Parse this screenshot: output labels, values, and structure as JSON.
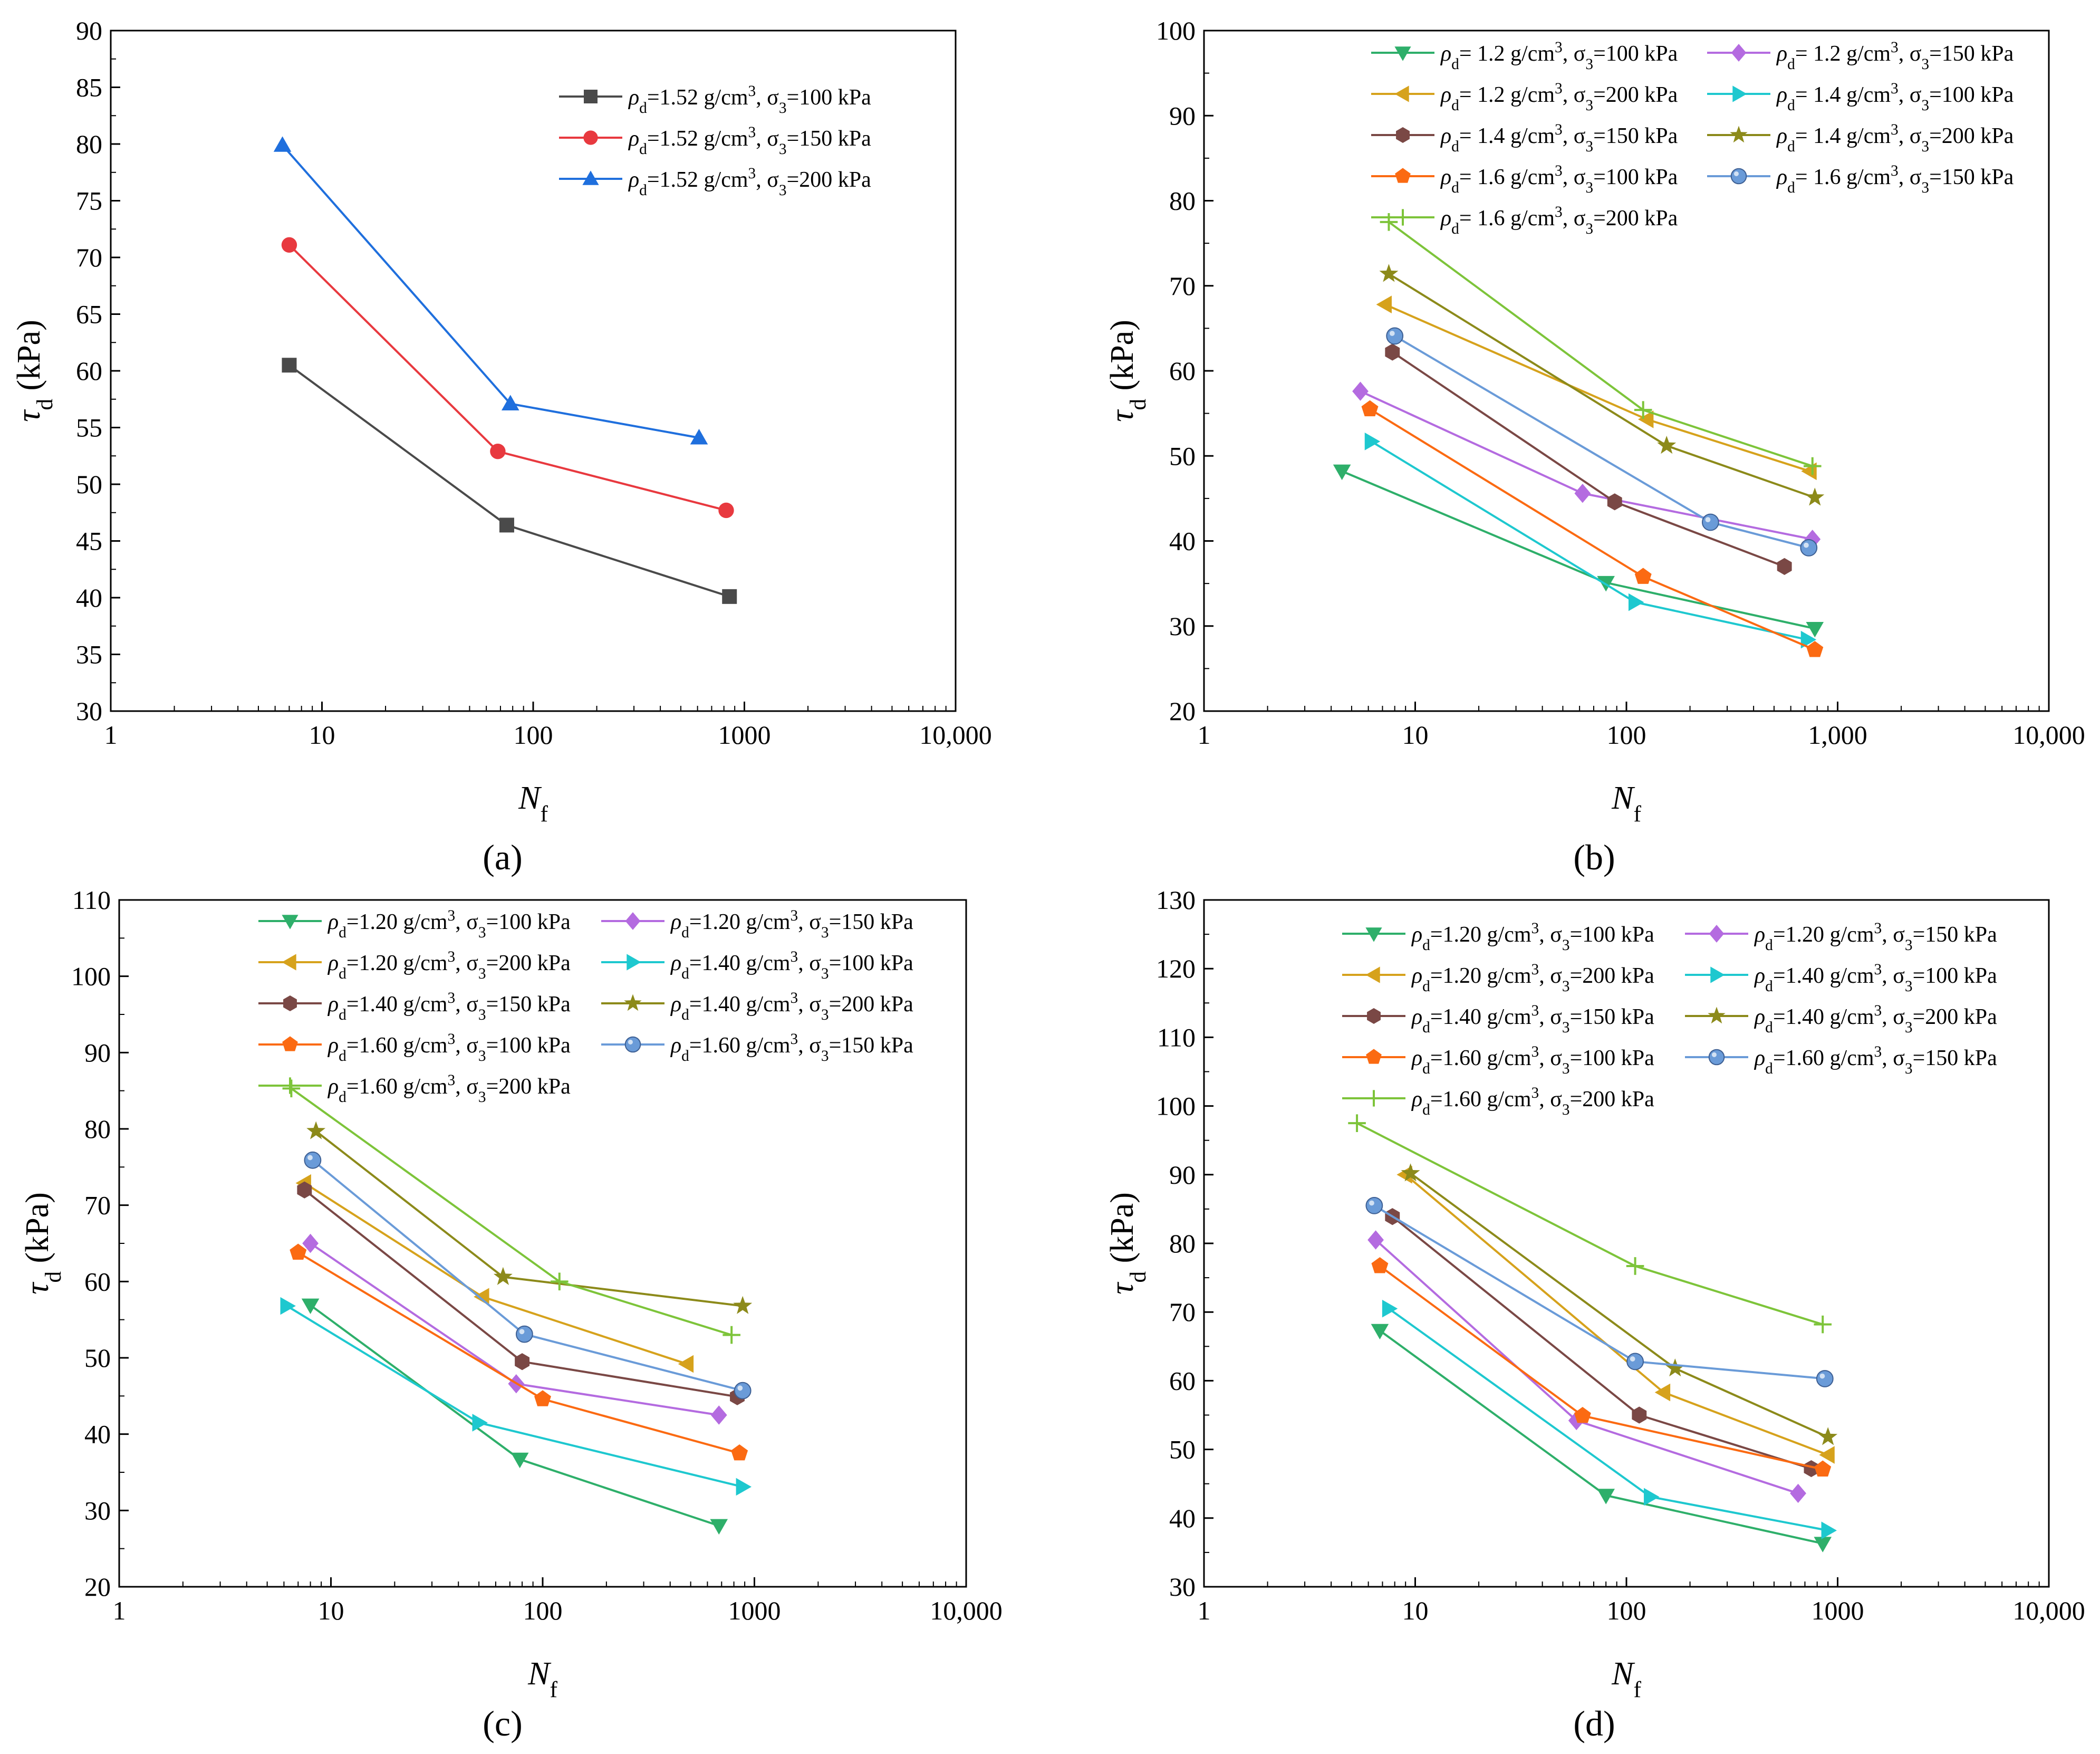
{
  "colors": {
    "black": "#4a4a4a",
    "red": "#e8393f",
    "blue": "#1f6fdd",
    "green": "#2eaf6a",
    "purple": "#b46be0",
    "gold": "#d6a21c",
    "cyan": "#1ec8cf",
    "brown": "#7a4845",
    "olive": "#8c8a1a",
    "orange": "#fb6a12",
    "steel": "#6a9bd8",
    "lime": "#7dc43a"
  },
  "chart_data": [
    {
      "id": "a",
      "panel_label": "(a)",
      "type": "line",
      "xscale": "log",
      "xlim": [
        1,
        10000
      ],
      "xticks": [
        1,
        10,
        100,
        1000,
        10000
      ],
      "xticklabels": [
        "1",
        "10",
        "100",
        "1000",
        "10,000"
      ],
      "ylim": [
        30,
        90
      ],
      "yticks": [
        30,
        35,
        40,
        45,
        50,
        55,
        60,
        65,
        70,
        75,
        80,
        85,
        90
      ],
      "xlabel": "N",
      "xlabel_sub": "f",
      "ylabel": "τ",
      "ylabel_sub": "d",
      "ylabel_unit": " (kPa)",
      "legend_position": "top-right",
      "legend_columns": 1,
      "series": [
        {
          "name": "ρd=1.52 g/cm3, σ3=100 kPa",
          "label_parts": [
            "ρ",
            "d",
            "=1.52 g/cm",
            "3",
            ", σ",
            "3",
            "=100 kPa"
          ],
          "marker": "square",
          "color": "#4a4a4a",
          "x": [
            7,
            75,
            850
          ],
          "y": [
            60.5,
            46.4,
            40.1
          ]
        },
        {
          "name": "ρd=1.52 g/cm3, σ3=150 kPa",
          "label_parts": [
            "ρ",
            "d",
            "=1.52 g/cm",
            "3",
            ", σ",
            "3",
            "=150 kPa"
          ],
          "marker": "circle",
          "color": "#e8393f",
          "x": [
            7,
            68,
            820
          ],
          "y": [
            71.1,
            52.9,
            47.7
          ]
        },
        {
          "name": "ρd=1.52 g/cm3, σ3=200 kPa",
          "label_parts": [
            "ρ",
            "d",
            "=1.52 g/cm",
            "3",
            ", σ",
            "3",
            "=200 kPa"
          ],
          "marker": "triangle-up",
          "color": "#1f6fdd",
          "x": [
            6.5,
            78,
            610
          ],
          "y": [
            79.9,
            57.1,
            54.1
          ]
        }
      ]
    },
    {
      "id": "b",
      "panel_label": "(b)",
      "type": "line",
      "xscale": "log",
      "xlim": [
        1,
        10000
      ],
      "xticks": [
        1,
        10,
        100,
        1000,
        10000
      ],
      "xticklabels": [
        "1",
        "10",
        "100",
        "1,000",
        "10,000"
      ],
      "ylim": [
        20,
        100
      ],
      "yticks": [
        20,
        30,
        40,
        50,
        60,
        70,
        80,
        90,
        100
      ],
      "xlabel": "N",
      "xlabel_sub": "f",
      "ylabel": "τ",
      "ylabel_sub": "d",
      "ylabel_unit": " (kPa)",
      "legend_position": "top",
      "legend_columns": 2,
      "series": [
        {
          "name": "ρd= 1.2 g/cm3, σ3=100 kPa",
          "label_parts": [
            "ρ",
            "d",
            "= 1.2 g/cm",
            "3",
            ", σ",
            "3",
            "=100 kPa"
          ],
          "marker": "triangle-down",
          "color": "#2eaf6a",
          "x": [
            4.5,
            80,
            780
          ],
          "y": [
            48.2,
            35.1,
            29.7
          ]
        },
        {
          "name": "ρd= 1.2 g/cm3, σ3=150 kPa",
          "label_parts": [
            "ρ",
            "d",
            "= 1.2 g/cm",
            "3",
            ", σ",
            "3",
            "=150 kPa"
          ],
          "marker": "diamond",
          "color": "#b46be0",
          "x": [
            5.5,
            62,
            760
          ],
          "y": [
            57.6,
            45.6,
            40.2
          ]
        },
        {
          "name": "ρd= 1.2 g/cm3, σ3=200 kPa",
          "label_parts": [
            "ρ",
            "d",
            "= 1.2 g/cm",
            "3",
            ", σ",
            "3",
            "=200 kPa"
          ],
          "marker": "triangle-left",
          "color": "#d6a21c",
          "x": [
            7.2,
            125,
            740
          ],
          "y": [
            67.8,
            54.3,
            48.2
          ]
        },
        {
          "name": "ρd= 1.4 g/cm3, σ3=100 kPa",
          "label_parts": [
            "ρ",
            "d",
            "= 1.4 g/cm",
            "3",
            ", σ",
            "3",
            "=100 kPa"
          ],
          "marker": "triangle-right",
          "color": "#1ec8cf",
          "x": [
            6.2,
            110,
            720
          ],
          "y": [
            51.7,
            32.8,
            28.4
          ]
        },
        {
          "name": "ρd= 1.4 g/cm3, σ3=150 kPa",
          "label_parts": [
            "ρ",
            "d",
            "= 1.4 g/cm",
            "3",
            ", σ",
            "3",
            "=150 kPa"
          ],
          "marker": "hexagon",
          "color": "#7a4845",
          "x": [
            7.8,
            88,
            560
          ],
          "y": [
            62.2,
            44.6,
            37.0
          ]
        },
        {
          "name": "ρd= 1.4 g/cm3, σ3=200 kPa",
          "label_parts": [
            "ρ",
            "d",
            "= 1.4 g/cm",
            "3",
            ", σ",
            "3",
            "=200 kPa"
          ],
          "marker": "star",
          "color": "#8c8a1a",
          "x": [
            7.5,
            155,
            780
          ],
          "y": [
            71.4,
            51.2,
            45.1
          ]
        },
        {
          "name": "ρd= 1.6 g/cm3, σ3=100 kPa",
          "label_parts": [
            "ρ",
            "d",
            "= 1.6 g/cm",
            "3",
            ", σ",
            "3",
            "=100 kPa"
          ],
          "marker": "pentagon",
          "color": "#fb6a12",
          "x": [
            6.1,
            120,
            780
          ],
          "y": [
            55.5,
            35.8,
            27.2
          ]
        },
        {
          "name": "ρd= 1.6 g/cm3, σ3=150 kPa",
          "label_parts": [
            "ρ",
            "d",
            "= 1.6 g/cm",
            "3",
            ", σ",
            "3",
            "=150 kPa"
          ],
          "marker": "sphere",
          "color": "#6a9bd8",
          "x": [
            8,
            250,
            730
          ],
          "y": [
            64.1,
            42.2,
            39.2
          ]
        },
        {
          "name": "ρd= 1.6 g/cm3, σ3=200 kPa",
          "label_parts": [
            "ρ",
            "d",
            "= 1.6 g/cm",
            "3",
            ", σ",
            "3",
            "=200 kPa"
          ],
          "marker": "plus",
          "color": "#7dc43a",
          "x": [
            7.5,
            120,
            760
          ],
          "y": [
            77.5,
            55.4,
            48.8
          ]
        }
      ]
    },
    {
      "id": "c",
      "panel_label": "(c)",
      "type": "line",
      "xscale": "log",
      "xlim": [
        1,
        10000
      ],
      "xticks": [
        1,
        10,
        100,
        1000,
        10000
      ],
      "xticklabels": [
        "1",
        "10",
        "100",
        "1000",
        "10,000"
      ],
      "ylim": [
        20,
        110
      ],
      "yticks": [
        20,
        30,
        40,
        50,
        60,
        70,
        80,
        90,
        100,
        110
      ],
      "xlabel": "N",
      "xlabel_sub": "f",
      "ylabel": "τ",
      "ylabel_sub": "d",
      "ylabel_unit": " (kPa)",
      "legend_position": "top",
      "legend_columns": 2,
      "series": [
        {
          "name": "ρd=1.20 g/cm3, σ3=100 kPa",
          "label_parts": [
            "ρ",
            "d",
            "=1.20 g/cm",
            "3",
            ", σ",
            "3",
            "=100 kPa"
          ],
          "marker": "triangle-down",
          "color": "#2eaf6a",
          "x": [
            8,
            78,
            680
          ],
          "y": [
            56.9,
            36.7,
            28.0
          ]
        },
        {
          "name": "ρd=1.20 g/cm3, σ3=150 kPa",
          "label_parts": [
            "ρ",
            "d",
            "=1.20 g/cm",
            "3",
            ", σ",
            "3",
            "=150 kPa"
          ],
          "marker": "diamond",
          "color": "#b46be0",
          "x": [
            8,
            75,
            680
          ],
          "y": [
            65.0,
            46.6,
            42.5
          ]
        },
        {
          "name": "ρd=1.20 g/cm3, σ3=200 kPa",
          "label_parts": [
            "ρ",
            "d",
            "=1.20 g/cm",
            "3",
            ", σ",
            "3",
            "=200 kPa"
          ],
          "marker": "triangle-left",
          "color": "#d6a21c",
          "x": [
            7.5,
            52,
            480
          ],
          "y": [
            72.9,
            58.0,
            49.2
          ]
        },
        {
          "name": "ρd=1.40 g/cm3, σ3=100 kPa",
          "label_parts": [
            "ρ",
            "d",
            "=1.40 g/cm",
            "3",
            ", σ",
            "3",
            "=100 kPa"
          ],
          "marker": "triangle-right",
          "color": "#1ec8cf",
          "x": [
            6.2,
            50,
            880
          ],
          "y": [
            56.8,
            41.5,
            33.1
          ]
        },
        {
          "name": "ρd=1.40 g/cm3, σ3=150 kPa",
          "label_parts": [
            "ρ",
            "d",
            "=1.40 g/cm",
            "3",
            ", σ",
            "3",
            "=150 kPa"
          ],
          "marker": "hexagon",
          "color": "#7a4845",
          "x": [
            7.5,
            80,
            830
          ],
          "y": [
            72.0,
            49.5,
            44.9
          ]
        },
        {
          "name": "ρd=1.40 g/cm3, σ3=200 kPa",
          "label_parts": [
            "ρ",
            "d",
            "=1.40 g/cm",
            "3",
            ", σ",
            "3",
            "=200 kPa"
          ],
          "marker": "star",
          "color": "#8c8a1a",
          "x": [
            8.5,
            65,
            880
          ],
          "y": [
            79.7,
            60.6,
            56.8
          ]
        },
        {
          "name": "ρd=1.60 g/cm3, σ3=100 kPa",
          "label_parts": [
            "ρ",
            "d",
            "=1.60 g/cm",
            "3",
            ", σ",
            "3",
            "=100 kPa"
          ],
          "marker": "pentagon",
          "color": "#fb6a12",
          "x": [
            7,
            100,
            850
          ],
          "y": [
            63.8,
            44.6,
            37.5
          ]
        },
        {
          "name": "ρd=1.60 g/cm3, σ3=150 kPa",
          "label_parts": [
            "ρ",
            "d",
            "=1.60 g/cm",
            "3",
            ", σ",
            "3",
            "=150 kPa"
          ],
          "marker": "sphere",
          "color": "#6a9bd8",
          "x": [
            8.2,
            82,
            880
          ],
          "y": [
            75.9,
            53.1,
            45.7
          ]
        },
        {
          "name": "ρd=1.60 g/cm3, σ3=200 kPa",
          "label_parts": [
            "ρ",
            "d",
            "=1.60 g/cm",
            "3",
            ", σ",
            "3",
            "=200 kPa"
          ],
          "marker": "plus",
          "color": "#7dc43a",
          "x": [
            6.5,
            120,
            780
          ],
          "y": [
            85.3,
            60.0,
            53.0
          ]
        }
      ]
    },
    {
      "id": "d",
      "panel_label": "(d)",
      "type": "line",
      "xscale": "log",
      "xlim": [
        1,
        10000
      ],
      "xticks": [
        1,
        10,
        100,
        1000,
        10000
      ],
      "xticklabels": [
        "1",
        "10",
        "100",
        "1000",
        "10,000"
      ],
      "ylim": [
        30,
        130
      ],
      "yticks": [
        30,
        40,
        50,
        60,
        70,
        80,
        90,
        100,
        110,
        120,
        130
      ],
      "xlabel": "N",
      "xlabel_sub": "f",
      "ylabel": "τ",
      "ylabel_sub": "d",
      "ylabel_unit": " (kPa)",
      "legend_position": "top",
      "legend_columns": 2,
      "series": [
        {
          "name": "ρd=1.20 g/cm3, σ3=100 kPa",
          "label_parts": [
            "ρ",
            "d",
            "=1.20 g/cm",
            "3",
            ", σ",
            "3",
            "=100 kPa"
          ],
          "marker": "triangle-down",
          "color": "#2eaf6a",
          "x": [
            6.8,
            80,
            850
          ],
          "y": [
            67.3,
            43.3,
            36.3
          ]
        },
        {
          "name": "ρd=1.20 g/cm3, σ3=150 kPa",
          "label_parts": [
            "ρ",
            "d",
            "=1.20 g/cm",
            "3",
            ", σ",
            "3",
            "=150 kPa"
          ],
          "marker": "diamond",
          "color": "#b46be0",
          "x": [
            6.5,
            58,
            650
          ],
          "y": [
            80.5,
            54.2,
            43.6
          ]
        },
        {
          "name": "ρd=1.20 g/cm3, σ3=200 kPa",
          "label_parts": [
            "ρ",
            "d",
            "=1.20 g/cm",
            "3",
            ", σ",
            "3",
            "=200 kPa"
          ],
          "marker": "triangle-left",
          "color": "#d6a21c",
          "x": [
            9,
            150,
            900
          ],
          "y": [
            90.0,
            58.3,
            49.2
          ]
        },
        {
          "name": "ρd=1.40 g/cm3, σ3=100 kPa",
          "label_parts": [
            "ρ",
            "d",
            "=1.40 g/cm",
            "3",
            ", σ",
            "3",
            "=100 kPa"
          ],
          "marker": "triangle-right",
          "color": "#1ec8cf",
          "x": [
            7.5,
            130,
            900
          ],
          "y": [
            70.5,
            43.1,
            38.2
          ]
        },
        {
          "name": "ρd=1.40 g/cm3, σ3=150 kPa",
          "label_parts": [
            "ρ",
            "d",
            "=1.40 g/cm",
            "3",
            ", σ",
            "3",
            "=150 kPa"
          ],
          "marker": "hexagon",
          "color": "#7a4845",
          "x": [
            7.8,
            115,
            750
          ],
          "y": [
            83.9,
            55.0,
            47.2
          ]
        },
        {
          "name": "ρd=1.40 g/cm3, σ3=200 kPa",
          "label_parts": [
            "ρ",
            "d",
            "=1.40 g/cm",
            "3",
            ", σ",
            "3",
            "=200 kPa"
          ],
          "marker": "star",
          "color": "#8c8a1a",
          "x": [
            9.5,
            170,
            900
          ],
          "y": [
            90.2,
            61.8,
            51.8
          ]
        },
        {
          "name": "ρd=1.60 g/cm3, σ3=100 kPa",
          "label_parts": [
            "ρ",
            "d",
            "=1.60 g/cm",
            "3",
            ", σ",
            "3",
            "=100 kPa"
          ],
          "marker": "pentagon",
          "color": "#fb6a12",
          "x": [
            6.8,
            62,
            850
          ],
          "y": [
            76.7,
            54.9,
            47.1
          ]
        },
        {
          "name": "ρd=1.60 g/cm3, σ3=150 kPa",
          "label_parts": [
            "ρ",
            "d",
            "=1.60 g/cm",
            "3",
            ", σ",
            "3",
            "=150 kPa"
          ],
          "marker": "sphere",
          "color": "#6a9bd8",
          "x": [
            6.4,
            110,
            870
          ],
          "y": [
            85.5,
            62.8,
            60.3
          ]
        },
        {
          "name": "ρd=1.60 g/cm3, σ3=200 kPa",
          "label_parts": [
            "ρ",
            "d",
            "=1.60 g/cm",
            "3",
            ", σ",
            "3",
            "=200 kPa"
          ],
          "marker": "plus",
          "color": "#7dc43a",
          "x": [
            5.3,
            110,
            850
          ],
          "y": [
            97.5,
            76.7,
            68.2
          ]
        }
      ]
    }
  ]
}
